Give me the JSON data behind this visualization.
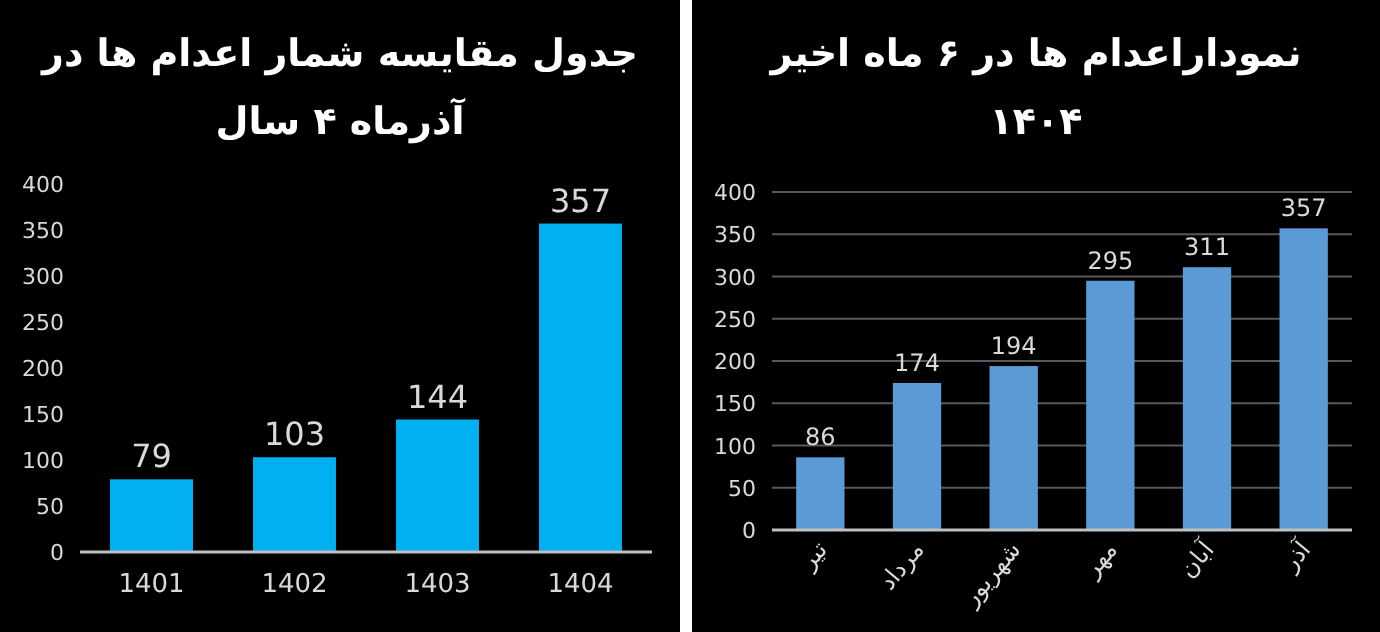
{
  "chart_data": [
    {
      "type": "bar",
      "title": "جدول مقایسه شمار اعدام ها در آذرماه ۴ سال",
      "categories": [
        "1401",
        "1402",
        "1403",
        "1404"
      ],
      "values": [
        79,
        103,
        144,
        357
      ],
      "color": "#00b0f0",
      "ylim": [
        0,
        400
      ],
      "yticks": [
        0,
        50,
        100,
        150,
        200,
        250,
        300,
        350,
        400
      ],
      "data_labels": true
    },
    {
      "type": "bar",
      "title": "نموداراعدام ها در ۶ ماه اخیر ۱۴۰۴",
      "categories": [
        "تیر",
        "مرداد",
        "شهریور",
        "مهر",
        "آبان",
        "آذر"
      ],
      "values": [
        86,
        174,
        194,
        295,
        311,
        357
      ],
      "color": "#5b9bd5",
      "ylim": [
        0,
        400
      ],
      "yticks": [
        0,
        50,
        100,
        150,
        200,
        250,
        300,
        350,
        400
      ],
      "data_labels": true,
      "grid": "y"
    }
  ]
}
